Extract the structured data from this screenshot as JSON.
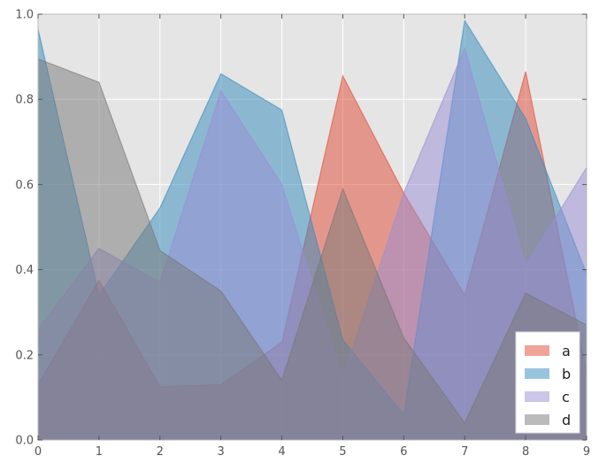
{
  "chart_data": {
    "type": "area",
    "stacked": false,
    "title": "",
    "xlabel": "",
    "ylabel": "",
    "x": [
      0,
      1,
      2,
      3,
      4,
      5,
      6,
      7,
      8,
      9
    ],
    "xlim": [
      0,
      9
    ],
    "ylim": [
      0,
      1
    ],
    "x_ticks": [
      "0",
      "1",
      "2",
      "3",
      "4",
      "5",
      "6",
      "7",
      "8",
      "9"
    ],
    "y_ticks": [
      "0.0",
      "0.2",
      "0.4",
      "0.6",
      "0.8",
      "1.0"
    ],
    "grid": true,
    "background": "#e5e5e5",
    "legend_position": "lower-right",
    "series": [
      {
        "name": "a",
        "color": "#e24a33",
        "values": [
          0.13,
          0.375,
          0.125,
          0.13,
          0.23,
          0.855,
          0.58,
          0.34,
          0.865,
          0.16
        ]
      },
      {
        "name": "b",
        "color": "#348abd",
        "values": [
          0.965,
          0.34,
          0.545,
          0.86,
          0.775,
          0.235,
          0.06,
          0.985,
          0.755,
          0.39
        ]
      },
      {
        "name": "c",
        "color": "#988ed5",
        "values": [
          0.26,
          0.45,
          0.37,
          0.82,
          0.6,
          0.145,
          0.58,
          0.92,
          0.41,
          0.64
        ]
      },
      {
        "name": "d",
        "color": "#777777",
        "values": [
          0.895,
          0.84,
          0.445,
          0.35,
          0.14,
          0.59,
          0.24,
          0.04,
          0.345,
          0.27
        ]
      }
    ]
  }
}
